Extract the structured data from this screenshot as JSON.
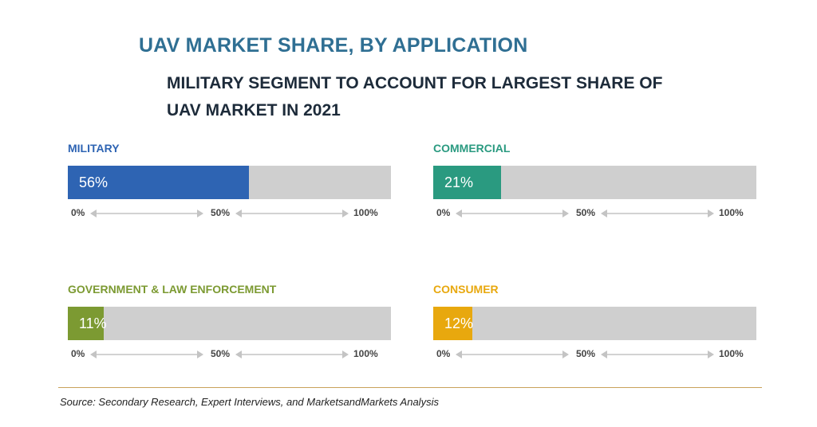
{
  "title": "UAV MARKET SHARE, BY APPLICATION",
  "subtitle": "MILITARY SEGMENT TO ACCOUNT FOR LARGEST SHARE OF UAV MARKET IN 2021",
  "source": "Source: Secondary Research, Expert Interviews, and MarketsandMarkets Analysis",
  "colors": {
    "military": "#2e64b3",
    "commercial": "#2a9a80",
    "government": "#7c9a32",
    "consumer": "#e8a80e",
    "track": "#cfcfcf",
    "source_rule": "#c9a25a"
  },
  "chart_data": {
    "type": "bar",
    "orientation": "horizontal",
    "categories": [
      "MILITARY",
      "COMMERCIAL",
      "GOVERNMENT & LAW ENFORCEMENT",
      "CONSUMER"
    ],
    "values": [
      56,
      21,
      11,
      12
    ],
    "value_labels": [
      "56%",
      "21%",
      "11%",
      "12%"
    ],
    "xlim": [
      0,
      100
    ],
    "tick_labels": [
      "0%",
      "50%",
      "100%"
    ]
  }
}
